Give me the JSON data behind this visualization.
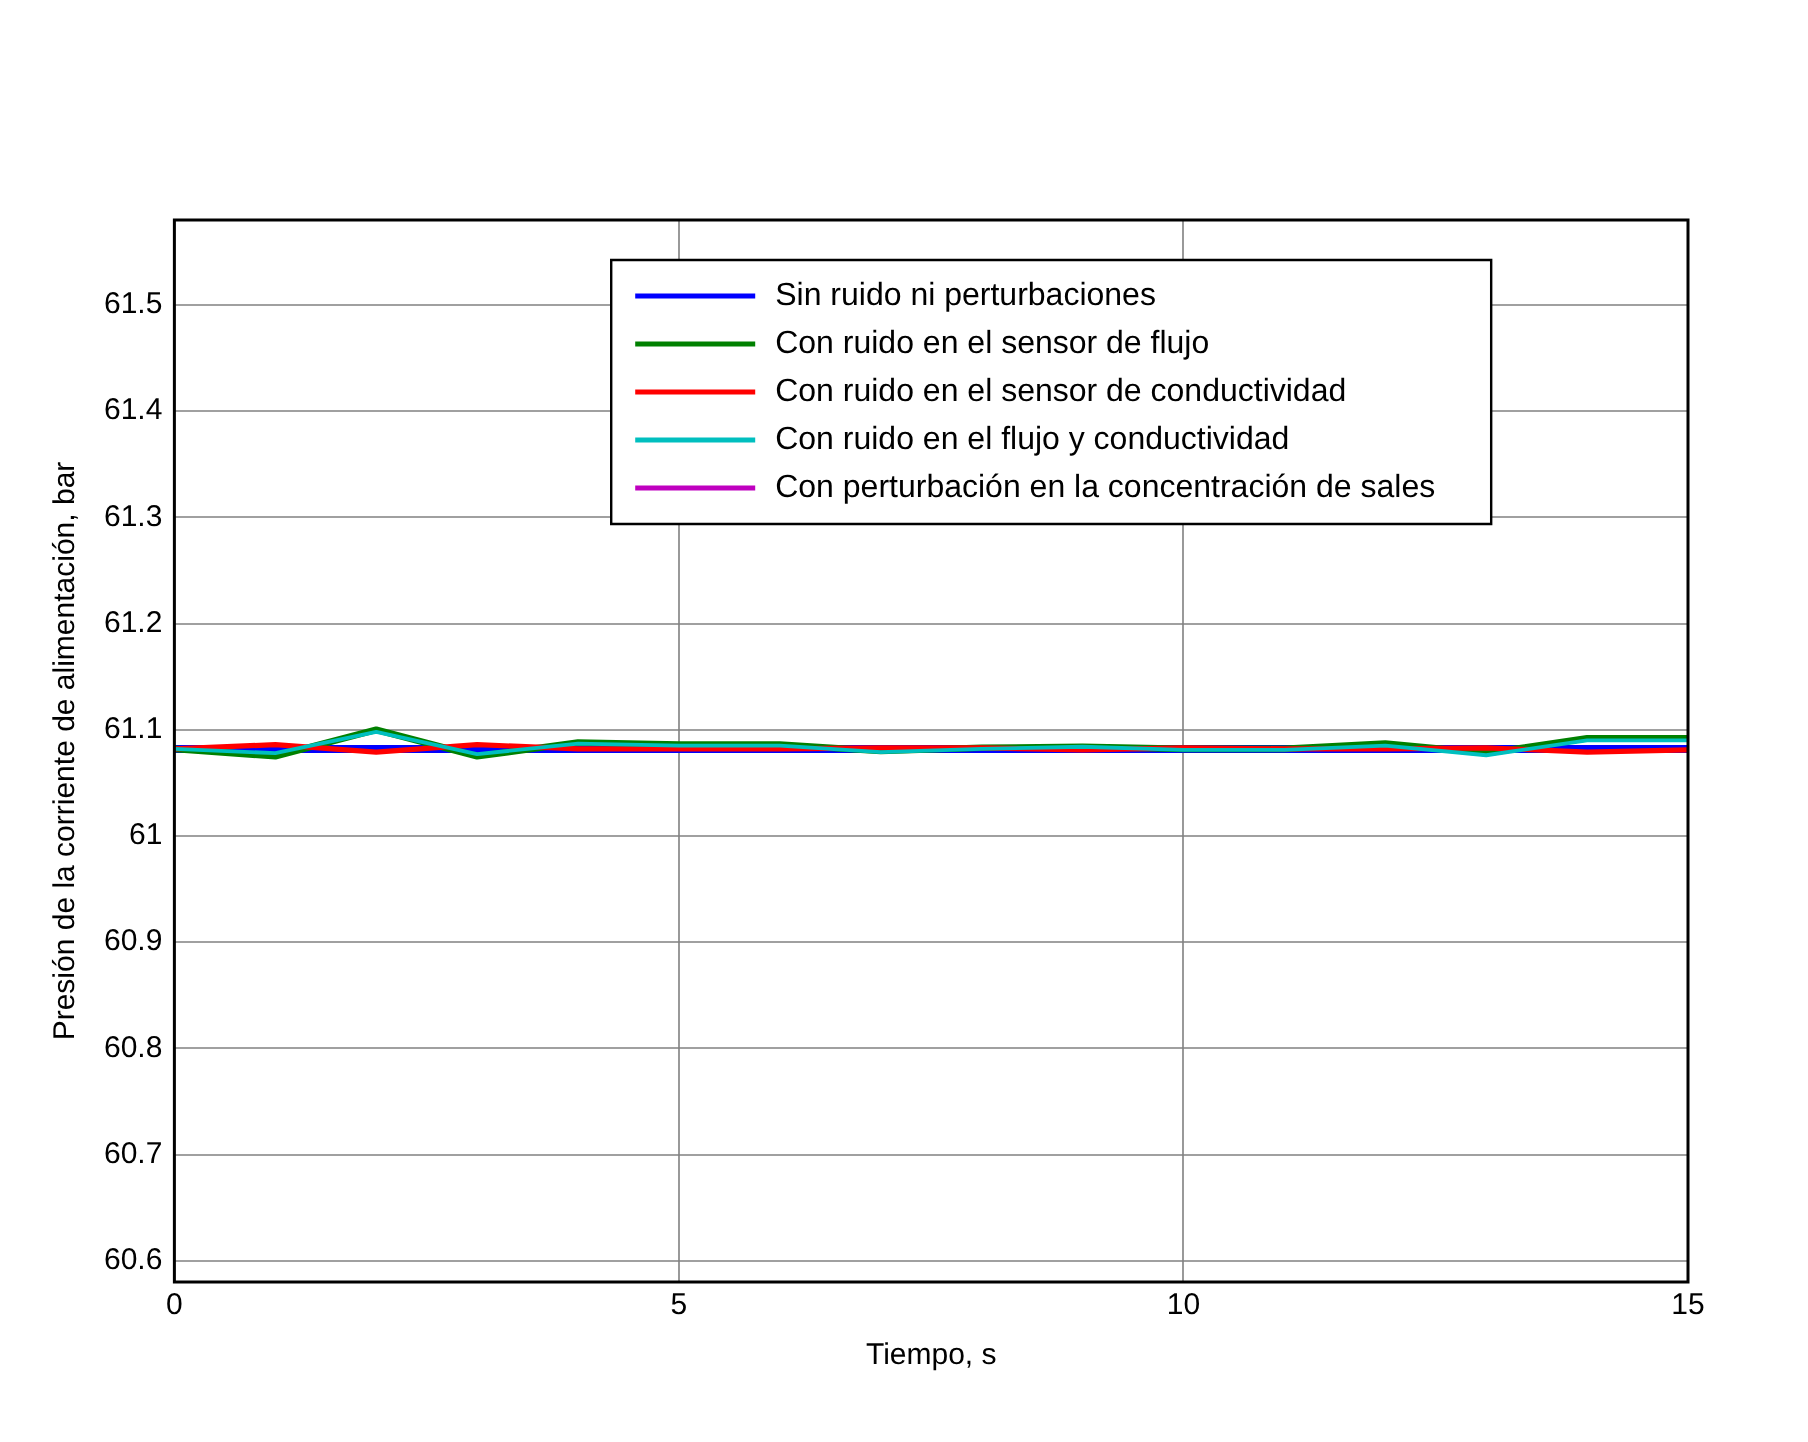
{
  "chart_data": {
    "type": "line",
    "xlabel": "Tiempo, s",
    "ylabel": "Presión de la corriente de alimentación, bar",
    "x": [
      0,
      1,
      2,
      3,
      4,
      5,
      6,
      7,
      8,
      9,
      10,
      11,
      12,
      13,
      14,
      15
    ],
    "series": [
      {
        "name": "Sin ruido ni perturbaciones",
        "color": "#0000ff",
        "values": [
          61.082,
          61.082,
          61.082,
          61.082,
          61.082,
          61.082,
          61.082,
          61.082,
          61.082,
          61.082,
          61.082,
          61.082,
          61.082,
          61.082,
          61.082,
          61.082
        ]
      },
      {
        "name": "Con ruido en el sensor de flujo",
        "color": "#008000",
        "values": [
          61.082,
          61.075,
          61.1,
          61.075,
          61.088,
          61.086,
          61.086,
          61.08,
          61.083,
          61.084,
          61.082,
          61.082,
          61.087,
          61.078,
          61.092,
          61.092
        ]
      },
      {
        "name": "Con ruido en el sensor de conductividad",
        "color": "#ff0000",
        "values": [
          61.082,
          61.086,
          61.079,
          61.086,
          61.082,
          61.082,
          61.082,
          61.083,
          61.083,
          61.081,
          61.083,
          61.082,
          61.082,
          61.083,
          61.079,
          61.081
        ]
      },
      {
        "name": "Con ruido en el flujo y conductividad",
        "color": "#00bfbf",
        "values": [
          61.082,
          61.078,
          61.098,
          61.077,
          61.087,
          61.085,
          61.085,
          61.079,
          61.082,
          61.084,
          61.081,
          61.081,
          61.085,
          61.076,
          61.09,
          61.09
        ]
      },
      {
        "name": "Con perturbación en la concentración de sales",
        "color": "#bf00bf",
        "values": [
          null,
          null,
          null,
          null,
          null,
          null,
          null,
          null,
          null,
          null,
          null,
          null,
          null,
          null,
          null,
          null
        ]
      }
    ],
    "xlim": [
      0,
      15
    ],
    "xticks": [
      0,
      5,
      10,
      15
    ],
    "ylim": [
      60.58,
      61.58
    ],
    "yticks": [
      60.6,
      60.7,
      60.8,
      60.9,
      61,
      61.1,
      61.2,
      61.3,
      61.4,
      61.5
    ],
    "grid": true,
    "legend": "top",
    "marker": "none",
    "line_style": "solid"
  }
}
